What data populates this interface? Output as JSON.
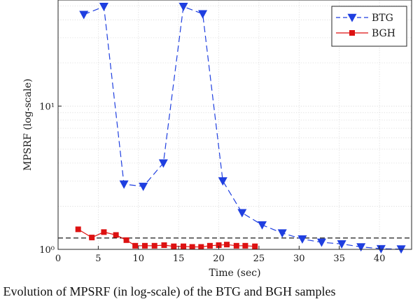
{
  "chart_data": {
    "type": "line",
    "title": "",
    "xlabel": "Time (sec)",
    "ylabel": "MPSRF (log-scale)",
    "xlim": [
      0,
      44
    ],
    "ylim": [
      1,
      55
    ],
    "yscale": "log",
    "xticks": [
      0,
      5,
      10,
      15,
      20,
      25,
      30,
      35,
      40
    ],
    "xtick_labels": [
      "0",
      "5",
      "10",
      "15",
      "20",
      "25",
      "30",
      "35",
      "40"
    ],
    "yticks": [
      1,
      10
    ],
    "ytick_labels": [
      "10⁰",
      "10¹"
    ],
    "grid": true,
    "legend_position": "top-right",
    "reference_line": {
      "y": 1.2,
      "style": "dashed",
      "color": "#000000"
    },
    "series": [
      {
        "name": "BTG",
        "color": "#1f3fe0",
        "line_style": "dashed",
        "marker": "triangle-down",
        "x": [
          3.2,
          5.7,
          8.2,
          10.6,
          13.1,
          15.6,
          18.0,
          20.5,
          22.9,
          25.4,
          27.9,
          30.4,
          32.8,
          35.3,
          37.7,
          40.2,
          42.7
        ],
        "y": [
          43.5,
          49.5,
          2.85,
          2.75,
          4.0,
          49.5,
          44.0,
          3.0,
          1.8,
          1.48,
          1.3,
          1.18,
          1.12,
          1.09,
          1.04,
          1.01,
          1.005
        ]
      },
      {
        "name": "BGH",
        "color": "#dd1111",
        "line_style": "solid",
        "marker": "square",
        "x": [
          2.5,
          4.2,
          5.7,
          7.2,
          8.5,
          9.6,
          10.8,
          12.0,
          13.2,
          14.4,
          15.6,
          16.7,
          17.8,
          18.9,
          20.0,
          21.0,
          22.2,
          23.3,
          24.5
        ],
        "y": [
          1.38,
          1.21,
          1.32,
          1.26,
          1.16,
          1.06,
          1.06,
          1.06,
          1.07,
          1.05,
          1.05,
          1.04,
          1.04,
          1.06,
          1.07,
          1.08,
          1.06,
          1.06,
          1.05
        ]
      }
    ]
  },
  "caption": "3: Evolution of MPSRF (in log-scale) of the BTG and BGH samples"
}
